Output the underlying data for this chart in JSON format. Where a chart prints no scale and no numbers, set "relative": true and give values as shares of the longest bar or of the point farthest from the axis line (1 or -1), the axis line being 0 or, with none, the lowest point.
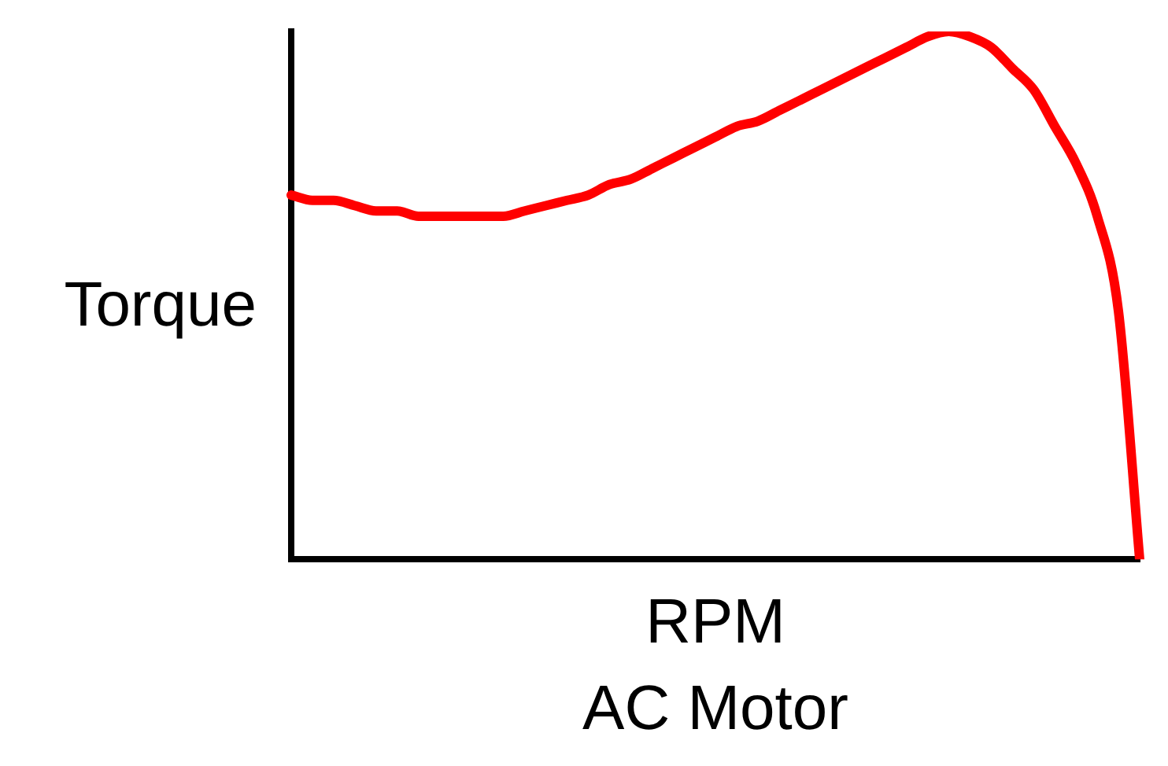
{
  "chart_data": {
    "type": "line",
    "title": "AC Motor",
    "xlabel": "RPM",
    "ylabel": "Torque",
    "relative": true,
    "legend": false,
    "grid": false,
    "marker": "none",
    "line_style": "solid",
    "categories": [
      null,
      null,
      null,
      null,
      null,
      null,
      null,
      null,
      null,
      null,
      null,
      null,
      null,
      null,
      null,
      null,
      null,
      null,
      null,
      null,
      null,
      null,
      null,
      null,
      null,
      null,
      null,
      null,
      null,
      null,
      null,
      null,
      null,
      null,
      null,
      null,
      null,
      null,
      null,
      null,
      null
    ],
    "series": [
      {
        "color": "#ff0000",
        "values": [
          0.69,
          0.68,
          0.68,
          0.67,
          0.66,
          0.66,
          0.65,
          0.65,
          0.65,
          0.65,
          0.65,
          0.66,
          0.67,
          0.68,
          0.69,
          0.71,
          0.72,
          0.74,
          0.76,
          0.78,
          0.8,
          0.82,
          0.83,
          0.85,
          0.87,
          0.89,
          0.91,
          0.93,
          0.95,
          0.97,
          0.99,
          1,
          0.99,
          0.97,
          0.93,
          0.89,
          0.82,
          0.75,
          0.65,
          0.47,
          0
        ]
      }
    ]
  }
}
